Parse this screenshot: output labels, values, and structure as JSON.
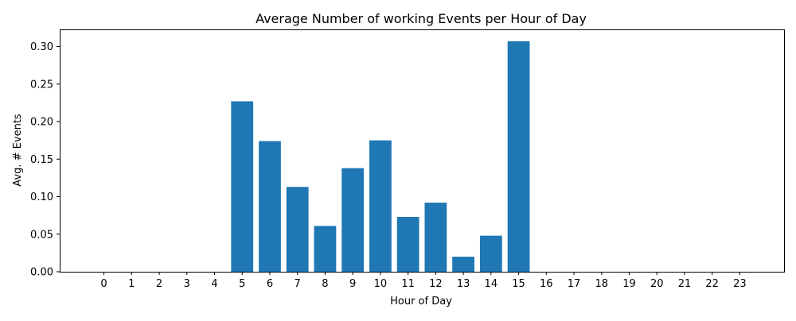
{
  "chart_data": {
    "type": "bar",
    "title": "Average Number of working Events per Hour of Day",
    "xlabel": "Hour of Day",
    "ylabel": "Avg. # Events",
    "categories": [
      "0",
      "1",
      "2",
      "3",
      "4",
      "5",
      "6",
      "7",
      "8",
      "9",
      "10",
      "11",
      "12",
      "13",
      "14",
      "15",
      "16",
      "17",
      "18",
      "19",
      "20",
      "21",
      "22",
      "23"
    ],
    "values": [
      0,
      0,
      0,
      0,
      0,
      0.227,
      0.174,
      0.113,
      0.061,
      0.138,
      0.175,
      0.073,
      0.092,
      0.02,
      0.048,
      0.307,
      0,
      0,
      0,
      0,
      0,
      0,
      0,
      0
    ],
    "ylim": [
      0,
      0.3228
    ],
    "yticks": [
      "0.00",
      "0.05",
      "0.10",
      "0.15",
      "0.20",
      "0.25",
      "0.30"
    ],
    "grid": false,
    "colors": {
      "bar": "#1f77b4",
      "axis": "#000000",
      "background": "#ffffff"
    }
  }
}
